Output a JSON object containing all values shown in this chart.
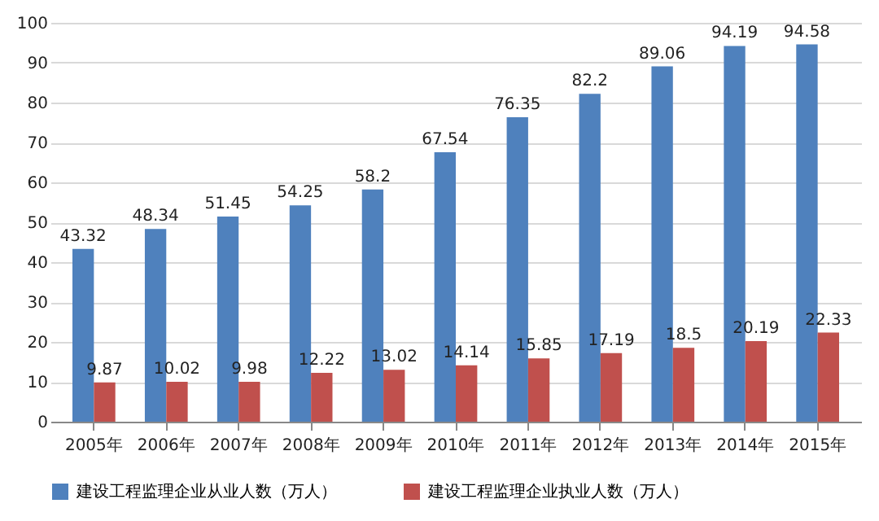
{
  "chart_data": {
    "type": "bar",
    "categories": [
      "2005年",
      "2006年",
      "2007年",
      "2008年",
      "2009年",
      "2010年",
      "2011年",
      "2012年",
      "2013年",
      "2014年",
      "2015年"
    ],
    "series": [
      {
        "name": "建设工程监理企业从业人数（万人）",
        "color": "#4f81bd",
        "values": [
          43.32,
          48.34,
          51.45,
          54.25,
          58.2,
          67.54,
          76.35,
          82.2,
          89.06,
          94.19,
          94.58
        ]
      },
      {
        "name": "建设工程监理企业执业人数（万人）",
        "color": "#c0504d",
        "values": [
          9.87,
          10.02,
          9.98,
          12.22,
          13.02,
          14.14,
          15.85,
          17.19,
          18.5,
          20.19,
          22.33
        ]
      }
    ],
    "ylim": [
      0,
      100
    ],
    "yticks": [
      0,
      10,
      20,
      30,
      40,
      50,
      60,
      70,
      80,
      90,
      100
    ],
    "grid": "y",
    "legend": "bottom",
    "data_labels": true
  }
}
